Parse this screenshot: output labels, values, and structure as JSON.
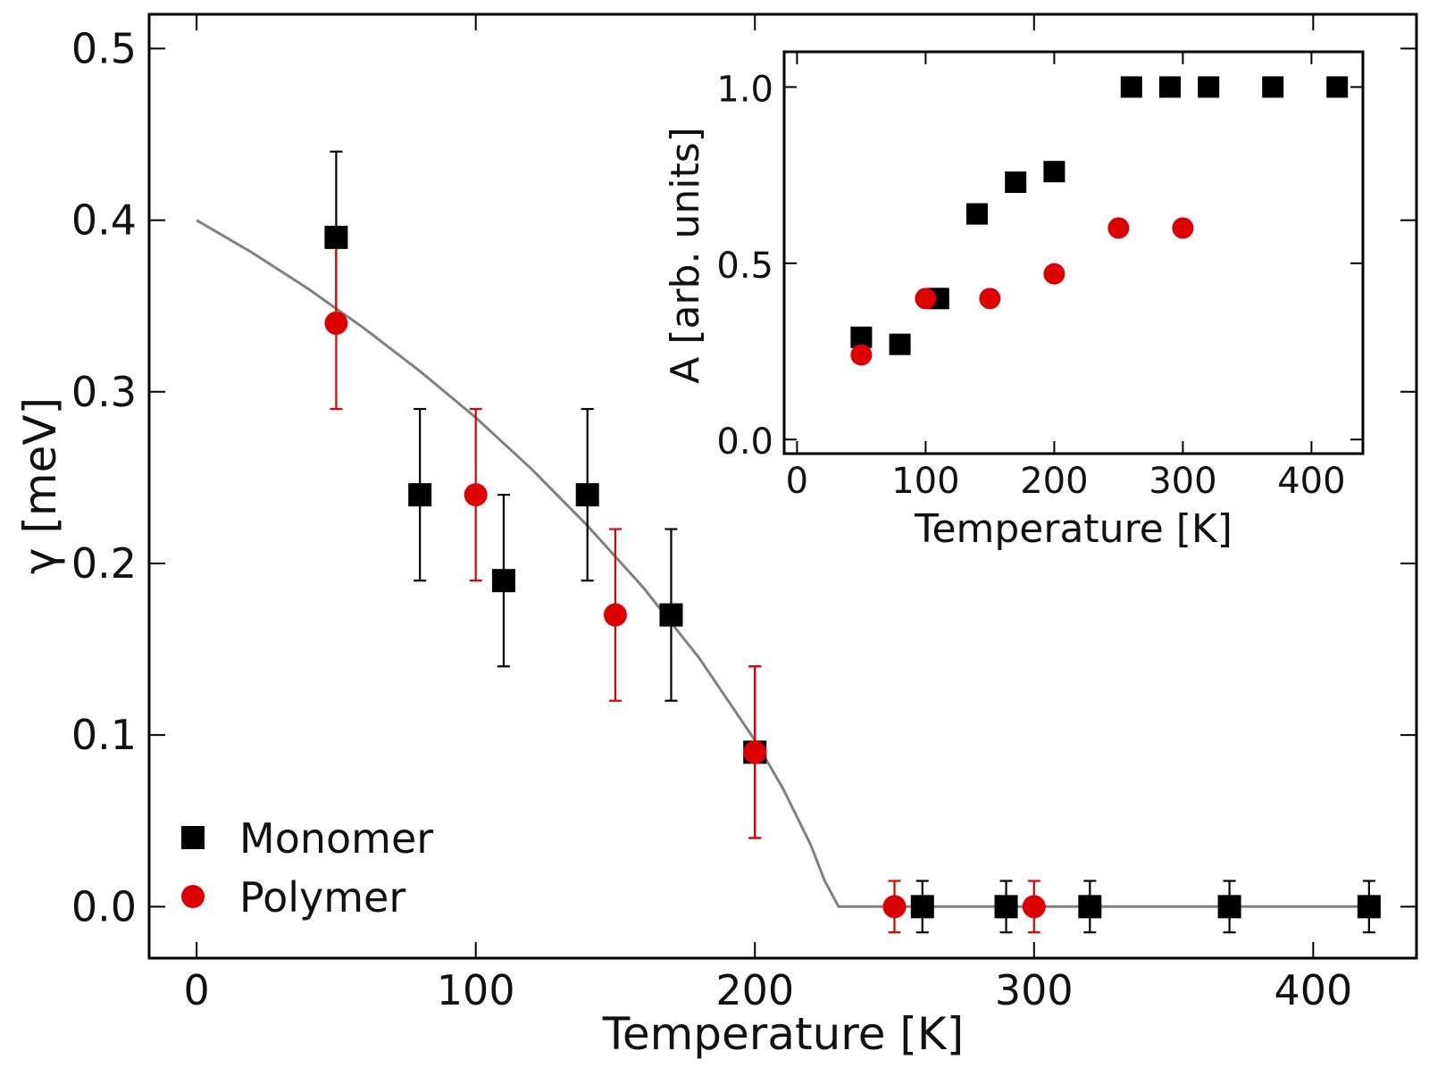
{
  "colors": {
    "monomer": "#000000",
    "polymer": "#dd0000",
    "fit": "#808080",
    "axes": "#000000"
  },
  "chart_data": [
    {
      "id": "main",
      "type": "scatter",
      "xlabel": "Temperature [K]",
      "ylabel": "γ [meV]",
      "xlim": [
        -17,
        437
      ],
      "ylim": [
        -0.03,
        0.52
      ],
      "xticks": [
        0,
        100,
        200,
        300,
        400
      ],
      "yticks": [
        0.0,
        0.1,
        0.2,
        0.3,
        0.4,
        0.5
      ],
      "xtick_labels": [
        "0",
        "100",
        "200",
        "300",
        "400"
      ],
      "ytick_labels": [
        "0.0",
        "0.1",
        "0.2",
        "0.3",
        "0.4",
        "0.5"
      ],
      "grid": false,
      "legend": {
        "position": "bottom-left",
        "entries": [
          {
            "label": "Monomer",
            "marker": "square",
            "color": "#000000"
          },
          {
            "label": "Polymer",
            "marker": "circle",
            "color": "#dd0000"
          }
        ]
      },
      "series": [
        {
          "name": "Monomer",
          "marker": "square",
          "color": "#000000",
          "points": [
            {
              "x": 50,
              "y": 0.39,
              "err": 0.05
            },
            {
              "x": 80,
              "y": 0.24,
              "err": 0.05
            },
            {
              "x": 110,
              "y": 0.19,
              "err": 0.05
            },
            {
              "x": 140,
              "y": 0.24,
              "err": 0.05
            },
            {
              "x": 170,
              "y": 0.17,
              "err": 0.05
            },
            {
              "x": 200,
              "y": 0.09,
              "err": 0.05
            },
            {
              "x": 260,
              "y": 0.0,
              "err": 0.015
            },
            {
              "x": 290,
              "y": 0.0,
              "err": 0.015
            },
            {
              "x": 320,
              "y": 0.0,
              "err": 0.015
            },
            {
              "x": 370,
              "y": 0.0,
              "err": 0.015
            },
            {
              "x": 420,
              "y": 0.0,
              "err": 0.015
            }
          ]
        },
        {
          "name": "Polymer",
          "marker": "circle",
          "color": "#dd0000",
          "points": [
            {
              "x": 50,
              "y": 0.34,
              "err": 0.05
            },
            {
              "x": 100,
              "y": 0.24,
              "err": 0.05
            },
            {
              "x": 150,
              "y": 0.17,
              "err": 0.05
            },
            {
              "x": 200,
              "y": 0.09,
              "err": 0.05
            },
            {
              "x": 250,
              "y": 0.0,
              "err": 0.015
            },
            {
              "x": 300,
              "y": 0.0,
              "err": 0.015
            }
          ]
        }
      ],
      "fit_curve": {
        "color": "#808080",
        "points": [
          [
            0,
            0.4
          ],
          [
            20,
            0.381
          ],
          [
            40,
            0.36
          ],
          [
            60,
            0.337
          ],
          [
            80,
            0.312
          ],
          [
            100,
            0.285
          ],
          [
            120,
            0.255
          ],
          [
            140,
            0.222
          ],
          [
            160,
            0.186
          ],
          [
            180,
            0.145
          ],
          [
            200,
            0.097
          ],
          [
            210,
            0.069
          ],
          [
            220,
            0.036
          ],
          [
            225,
            0.015
          ],
          [
            230,
            0.0
          ],
          [
            420,
            0.0
          ]
        ]
      }
    },
    {
      "id": "inset",
      "type": "scatter",
      "xlabel": "Temperature [K]",
      "ylabel": "A [arb. units]",
      "xlim": [
        -10,
        440
      ],
      "ylim": [
        -0.04,
        1.1
      ],
      "xticks": [
        0,
        100,
        200,
        300,
        400
      ],
      "yticks": [
        0.0,
        0.5,
        1.0
      ],
      "xtick_labels": [
        "0",
        "100",
        "200",
        "300",
        "400"
      ],
      "ytick_labels": [
        "0.0",
        "0.5",
        "1.0"
      ],
      "grid": false,
      "series": [
        {
          "name": "Monomer",
          "marker": "square",
          "color": "#000000",
          "points": [
            {
              "x": 50,
              "y": 0.29
            },
            {
              "x": 80,
              "y": 0.27
            },
            {
              "x": 110,
              "y": 0.4
            },
            {
              "x": 140,
              "y": 0.64
            },
            {
              "x": 170,
              "y": 0.73
            },
            {
              "x": 200,
              "y": 0.76
            },
            {
              "x": 260,
              "y": 1.0
            },
            {
              "x": 290,
              "y": 1.0
            },
            {
              "x": 320,
              "y": 1.0
            },
            {
              "x": 370,
              "y": 1.0
            },
            {
              "x": 420,
              "y": 1.0
            }
          ]
        },
        {
          "name": "Polymer",
          "marker": "circle",
          "color": "#dd0000",
          "points": [
            {
              "x": 50,
              "y": 0.24
            },
            {
              "x": 100,
              "y": 0.4
            },
            {
              "x": 150,
              "y": 0.4
            },
            {
              "x": 200,
              "y": 0.47
            },
            {
              "x": 250,
              "y": 0.6
            },
            {
              "x": 300,
              "y": 0.6
            }
          ]
        }
      ]
    }
  ]
}
